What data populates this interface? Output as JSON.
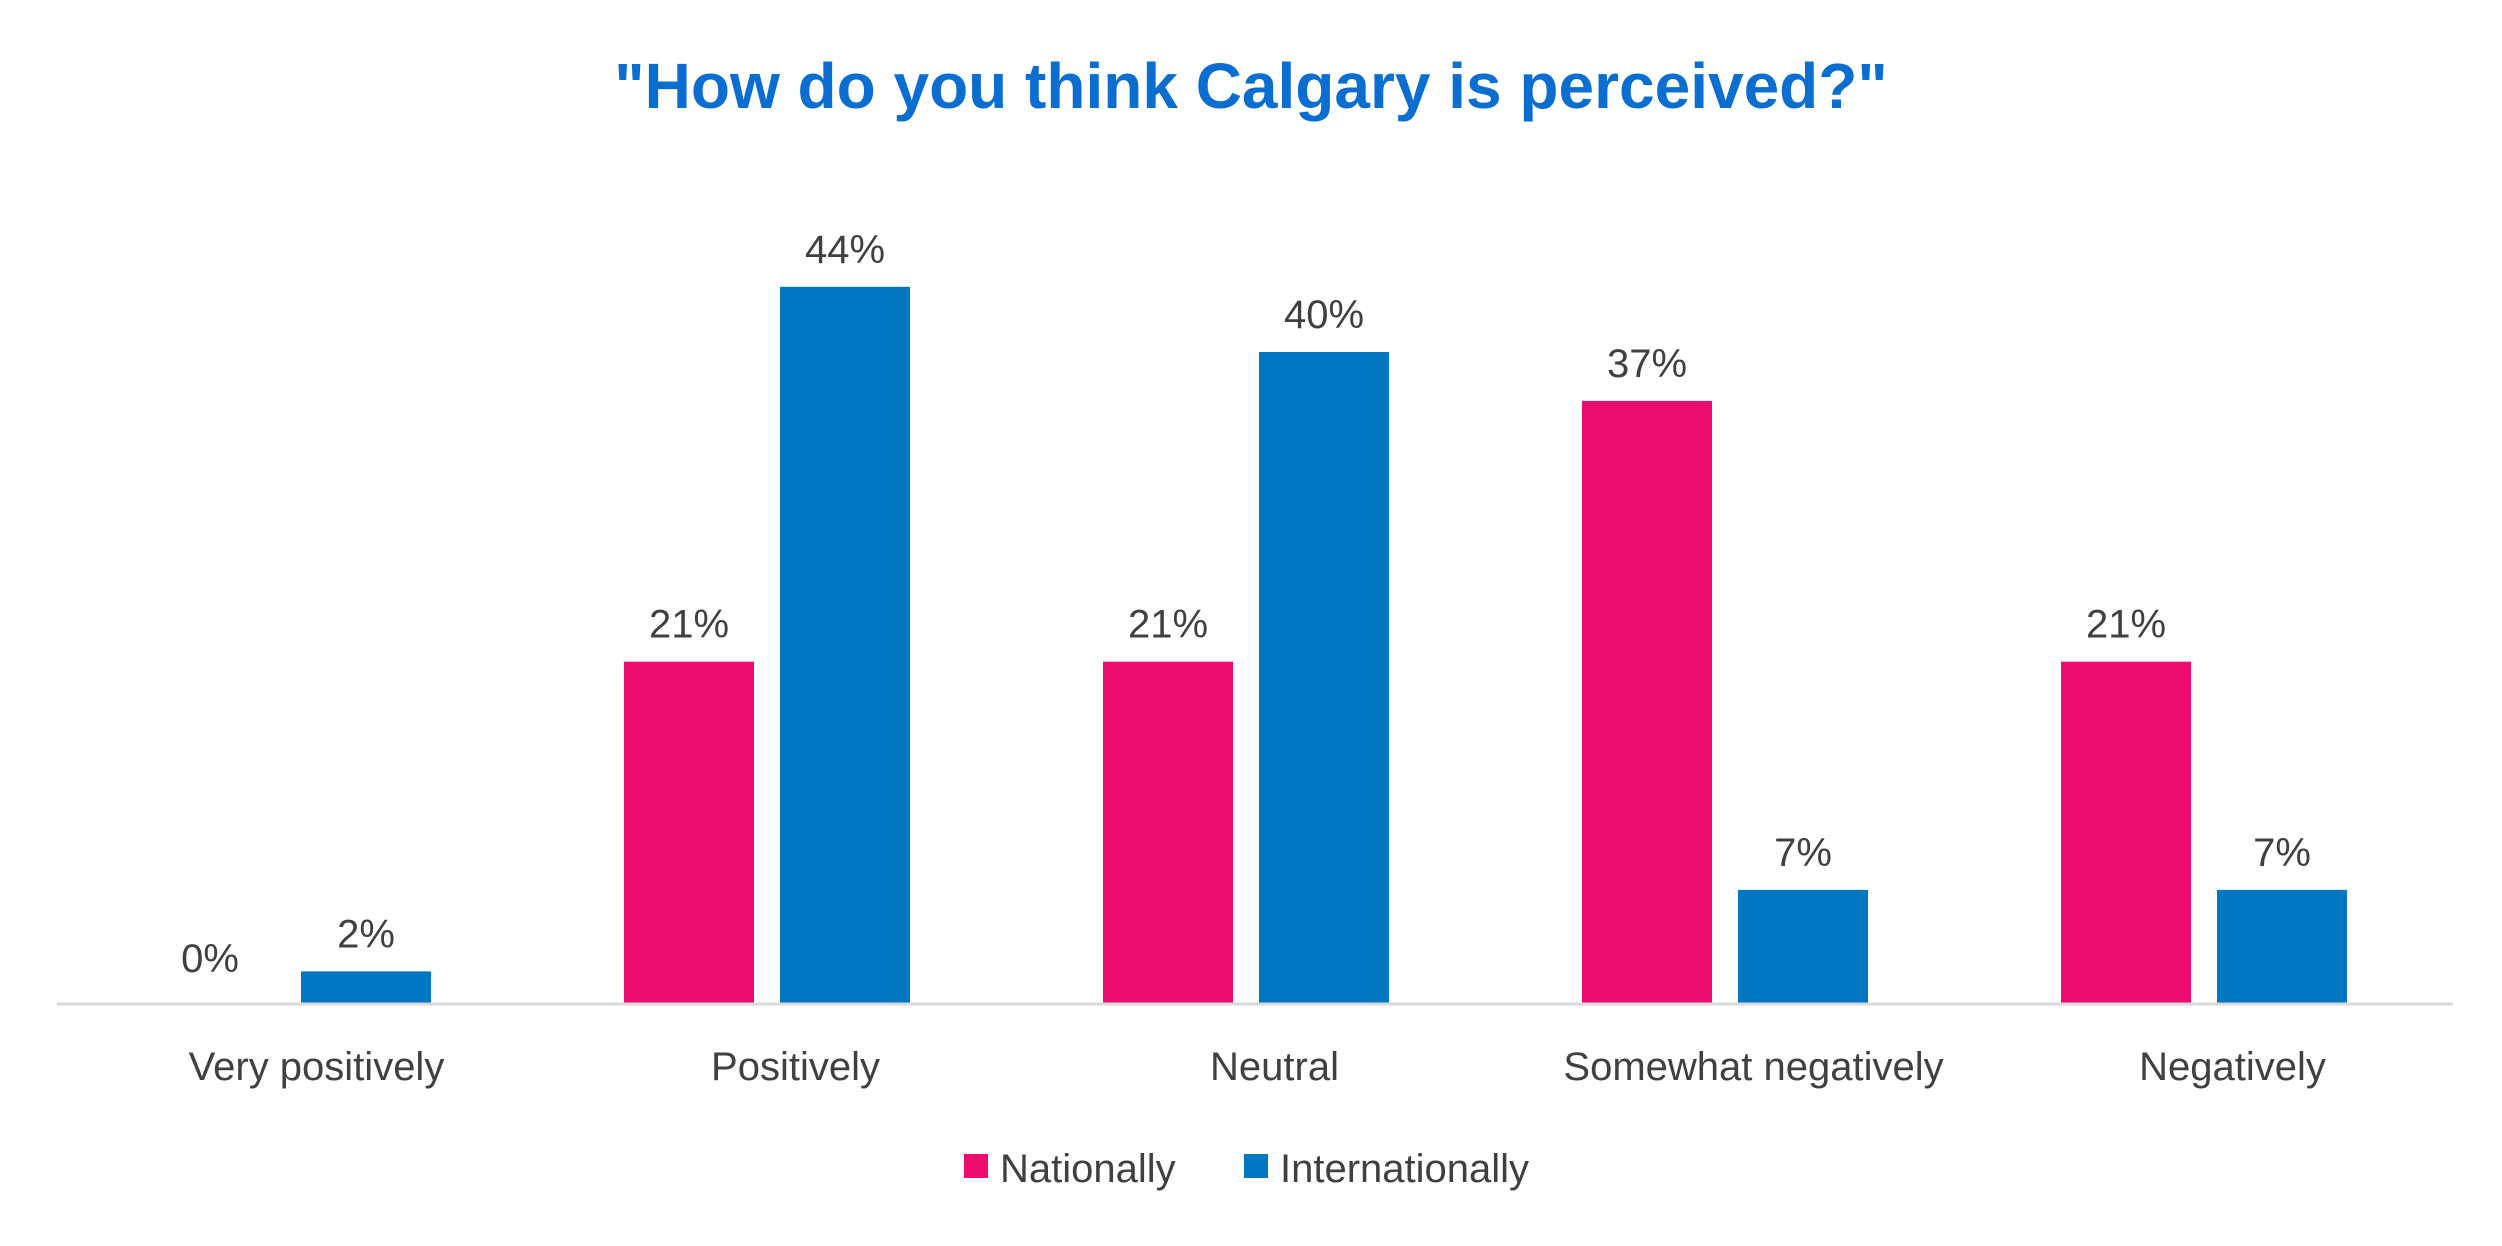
{
  "chart_data": {
    "type": "bar",
    "title": "\"How do you think Calgary is perceived?\"",
    "xlabel": "",
    "ylabel": "",
    "ylim": [
      0,
      44
    ],
    "grid": false,
    "legend_position": "bottom-center",
    "categories": [
      "Very positively",
      "Positively",
      "Neutral",
      "Somewhat negatively",
      "Negatively"
    ],
    "series": [
      {
        "name": "Nationally",
        "color": "#EC0C6E",
        "values": [
          0,
          21,
          21,
          37,
          21
        ],
        "labels": [
          "0%",
          "21%",
          "21%",
          "37%",
          "21%"
        ]
      },
      {
        "name": "Internationally",
        "color": "#0077C0",
        "values": [
          2,
          44,
          40,
          7,
          7
        ],
        "labels": [
          "2%",
          "44%",
          "40%",
          "7%",
          "7%"
        ]
      }
    ]
  },
  "colors": {
    "title": "#0A6ED1",
    "axis": "#D9D9D9",
    "text": "#404040"
  }
}
